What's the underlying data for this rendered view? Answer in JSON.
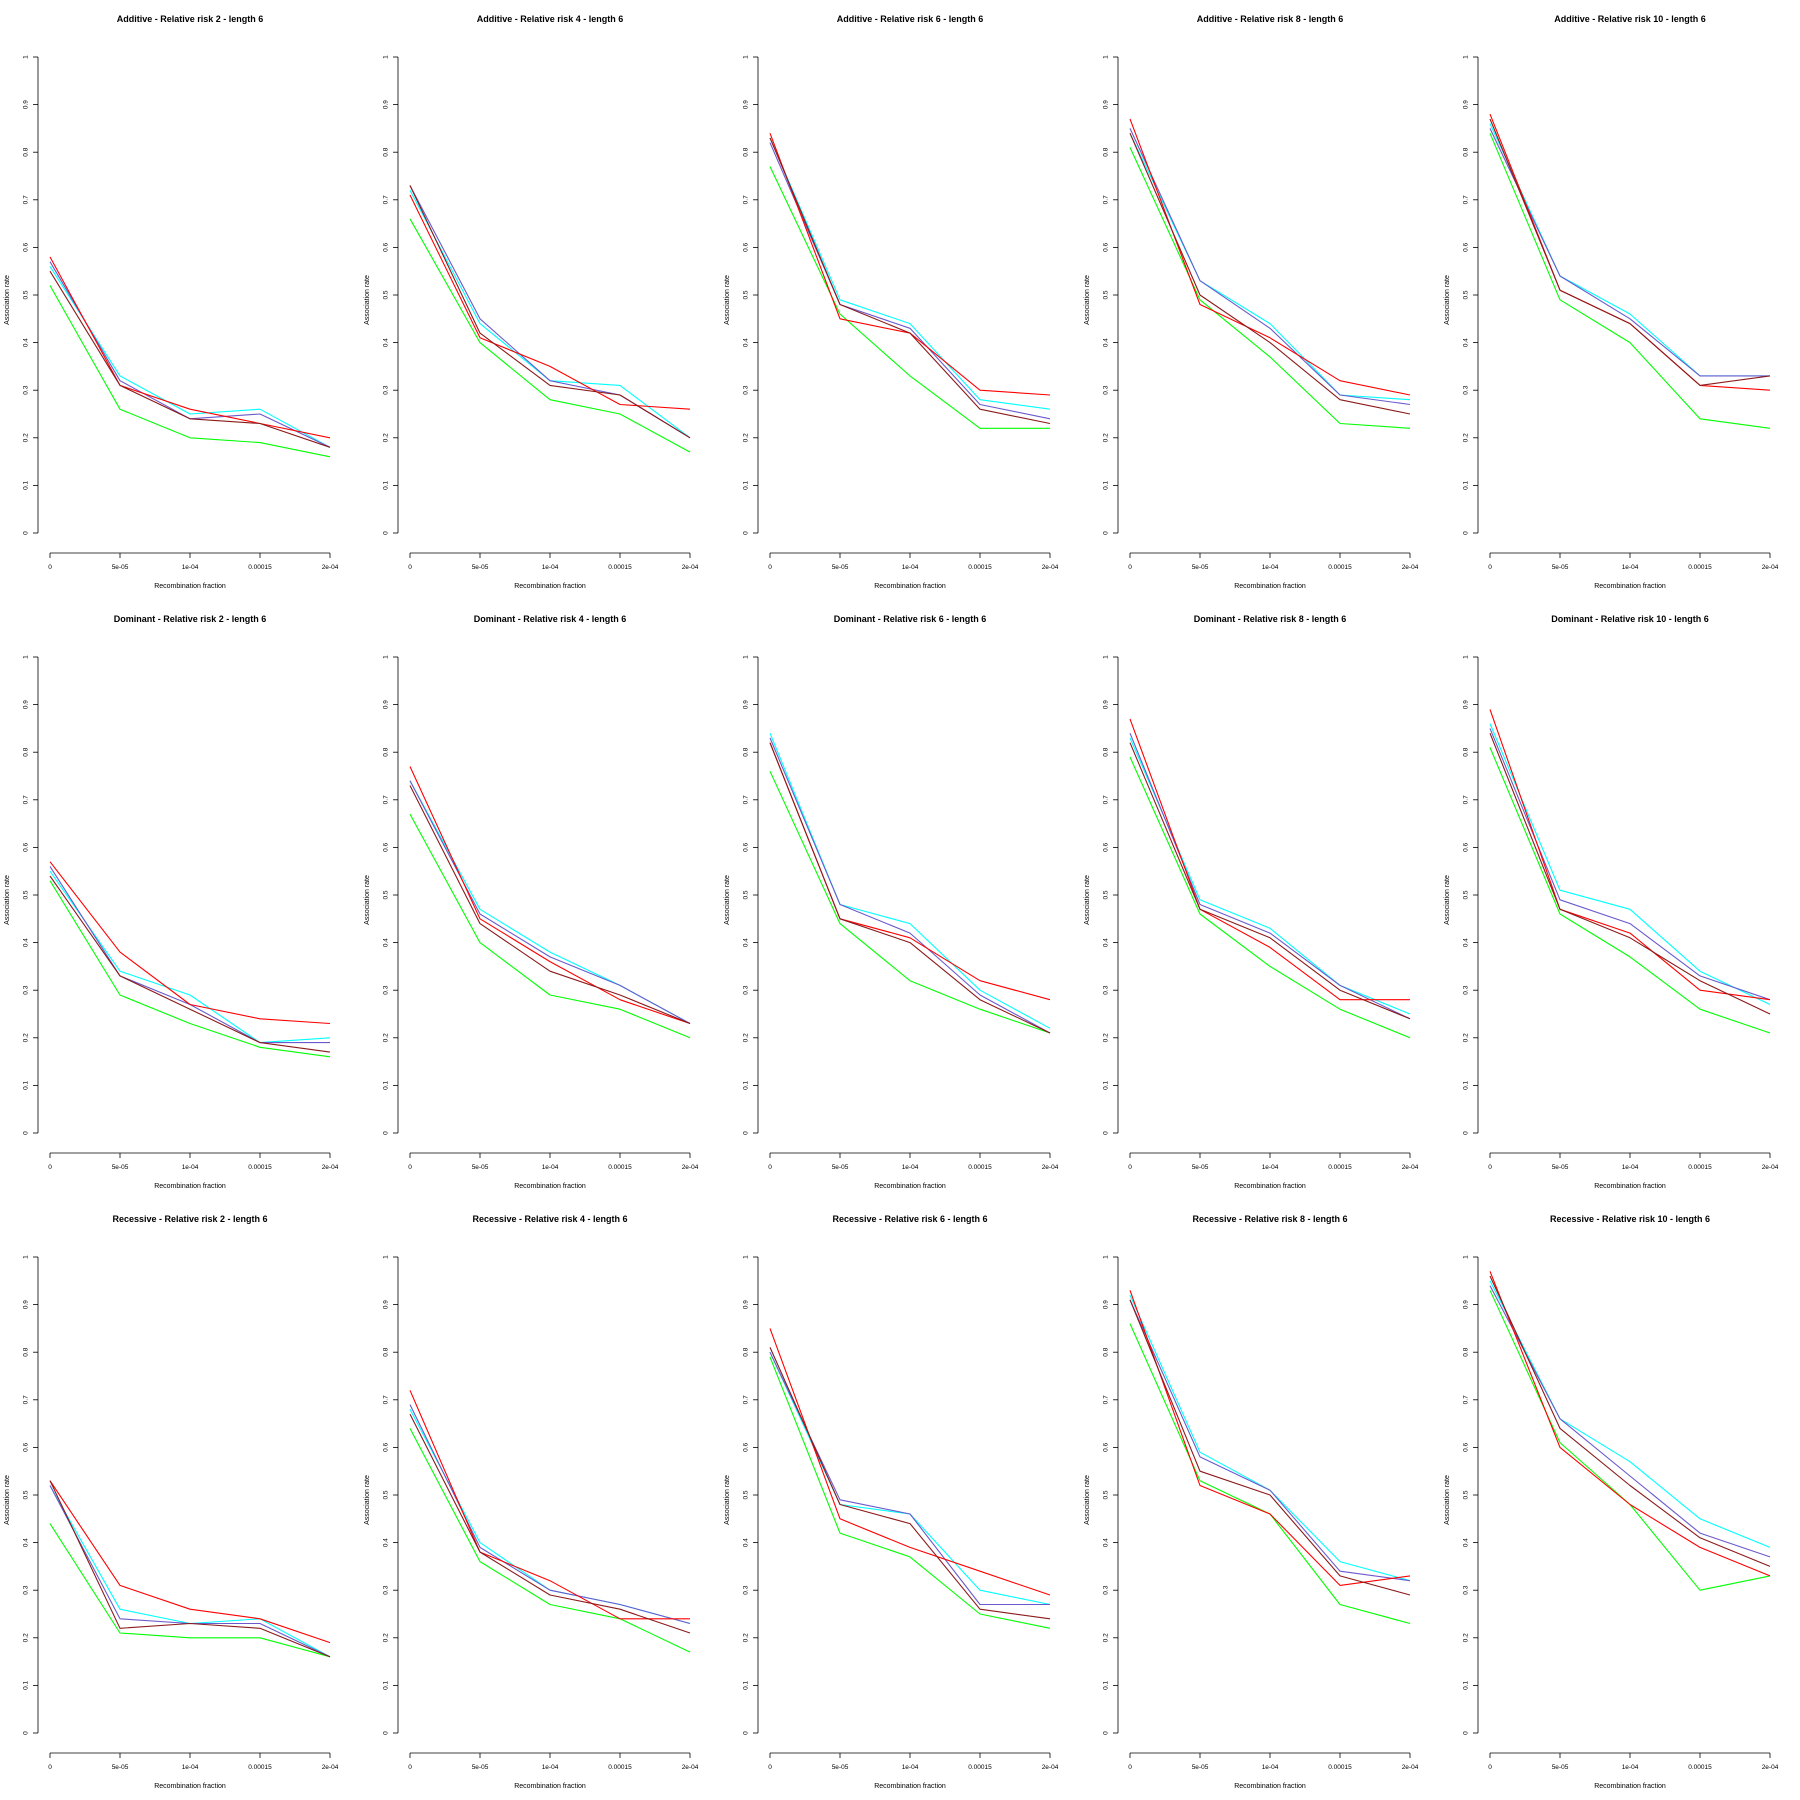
{
  "axes": {
    "xlabel": "Recombination fraction",
    "ylabel": "Association rate",
    "x_ticks": [
      "0",
      "5e-05",
      "1e-04",
      "0.00015",
      "2e-04"
    ],
    "y_ticks": [
      "0",
      "0.1",
      "0.2",
      "0.3",
      "0.4",
      "0.5",
      "0.6",
      "0.7",
      "0.8",
      "0.9",
      "1"
    ],
    "ylim": [
      0,
      1
    ]
  },
  "colors": {
    "cyan": "#00ffff",
    "green": "#00ff00",
    "blue": "#6a5acd",
    "red": "#ff0000",
    "brown": "#8b1a1a",
    "axis": "#000000"
  },
  "chart_data": [
    {
      "type": "line",
      "title": "Additive  - Relative risk 2 - length 6",
      "x": [
        "0",
        "5e-05",
        "1e-04",
        "0.00015",
        "2e-04"
      ],
      "xlabel": "Recombination fraction",
      "ylabel": "Association rate",
      "ylim": [
        0,
        1
      ],
      "series": [
        {
          "color": "cyan",
          "values": [
            0.56,
            0.33,
            0.25,
            0.26,
            0.18
          ]
        },
        {
          "color": "green",
          "values": [
            0.52,
            0.26,
            0.2,
            0.19,
            0.16
          ]
        },
        {
          "color": "blue",
          "values": [
            0.57,
            0.32,
            0.24,
            0.25,
            0.18
          ]
        },
        {
          "color": "red",
          "values": [
            0.58,
            0.31,
            0.26,
            0.23,
            0.2
          ]
        },
        {
          "color": "brown",
          "values": [
            0.55,
            0.31,
            0.24,
            0.23,
            0.18
          ]
        }
      ]
    },
    {
      "type": "line",
      "title": "Additive  - Relative risk 4 - length 6",
      "x": [
        "0",
        "5e-05",
        "1e-04",
        "0.00015",
        "2e-04"
      ],
      "xlabel": "Recombination fraction",
      "ylabel": "Association rate",
      "ylim": [
        0,
        1
      ],
      "series": [
        {
          "color": "cyan",
          "values": [
            0.72,
            0.44,
            0.32,
            0.31,
            0.2
          ]
        },
        {
          "color": "green",
          "values": [
            0.66,
            0.4,
            0.28,
            0.25,
            0.17
          ]
        },
        {
          "color": "blue",
          "values": [
            0.73,
            0.45,
            0.32,
            0.29,
            0.2
          ]
        },
        {
          "color": "red",
          "values": [
            0.71,
            0.41,
            0.35,
            0.27,
            0.26
          ]
        },
        {
          "color": "brown",
          "values": [
            0.73,
            0.42,
            0.31,
            0.29,
            0.2
          ]
        }
      ]
    },
    {
      "type": "line",
      "title": "Additive  - Relative risk 6 - length 6",
      "x": [
        "0",
        "5e-05",
        "1e-04",
        "0.00015",
        "2e-04"
      ],
      "xlabel": "Recombination fraction",
      "ylabel": "Association rate",
      "ylim": [
        0,
        1
      ],
      "series": [
        {
          "color": "cyan",
          "values": [
            0.83,
            0.49,
            0.44,
            0.28,
            0.26
          ]
        },
        {
          "color": "green",
          "values": [
            0.77,
            0.46,
            0.33,
            0.22,
            0.22
          ]
        },
        {
          "color": "blue",
          "values": [
            0.82,
            0.48,
            0.43,
            0.27,
            0.24
          ]
        },
        {
          "color": "red",
          "values": [
            0.84,
            0.45,
            0.42,
            0.3,
            0.29
          ]
        },
        {
          "color": "brown",
          "values": [
            0.83,
            0.48,
            0.42,
            0.26,
            0.23
          ]
        }
      ]
    },
    {
      "type": "line",
      "title": "Additive  - Relative risk 8 - length 6",
      "x": [
        "0",
        "5e-05",
        "1e-04",
        "0.00015",
        "2e-04"
      ],
      "xlabel": "Recombination fraction",
      "ylabel": "Association rate",
      "ylim": [
        0,
        1
      ],
      "series": [
        {
          "color": "cyan",
          "values": [
            0.84,
            0.53,
            0.44,
            0.29,
            0.28
          ]
        },
        {
          "color": "green",
          "values": [
            0.81,
            0.49,
            0.37,
            0.23,
            0.22
          ]
        },
        {
          "color": "blue",
          "values": [
            0.85,
            0.53,
            0.43,
            0.29,
            0.27
          ]
        },
        {
          "color": "red",
          "values": [
            0.87,
            0.48,
            0.41,
            0.32,
            0.29
          ]
        },
        {
          "color": "brown",
          "values": [
            0.84,
            0.5,
            0.4,
            0.28,
            0.25
          ]
        }
      ]
    },
    {
      "type": "line",
      "title": "Additive  - Relative risk 10 - length 6",
      "x": [
        "0",
        "5e-05",
        "1e-04",
        "0.00015",
        "2e-04"
      ],
      "xlabel": "Recombination fraction",
      "ylabel": "Association rate",
      "ylim": [
        0,
        1
      ],
      "series": [
        {
          "color": "cyan",
          "values": [
            0.86,
            0.54,
            0.46,
            0.33,
            0.33
          ]
        },
        {
          "color": "green",
          "values": [
            0.84,
            0.49,
            0.4,
            0.24,
            0.22
          ]
        },
        {
          "color": "blue",
          "values": [
            0.85,
            0.54,
            0.45,
            0.33,
            0.33
          ]
        },
        {
          "color": "red",
          "values": [
            0.88,
            0.51,
            0.44,
            0.31,
            0.3
          ]
        },
        {
          "color": "brown",
          "values": [
            0.87,
            0.51,
            0.44,
            0.31,
            0.33
          ]
        }
      ]
    },
    {
      "type": "line",
      "title": "Dominant  - Relative risk 2 - length 6",
      "x": [
        "0",
        "5e-05",
        "1e-04",
        "0.00015",
        "2e-04"
      ],
      "xlabel": "Recombination fraction",
      "ylabel": "Association rate",
      "ylim": [
        0,
        1
      ],
      "series": [
        {
          "color": "cyan",
          "values": [
            0.55,
            0.34,
            0.29,
            0.19,
            0.2
          ]
        },
        {
          "color": "green",
          "values": [
            0.53,
            0.29,
            0.23,
            0.18,
            0.16
          ]
        },
        {
          "color": "blue",
          "values": [
            0.56,
            0.33,
            0.27,
            0.19,
            0.19
          ]
        },
        {
          "color": "red",
          "values": [
            0.57,
            0.38,
            0.27,
            0.24,
            0.23
          ]
        },
        {
          "color": "brown",
          "values": [
            0.54,
            0.33,
            0.26,
            0.19,
            0.17
          ]
        }
      ]
    },
    {
      "type": "line",
      "title": "Dominant  - Relative risk 4 - length 6",
      "x": [
        "0",
        "5e-05",
        "1e-04",
        "0.00015",
        "2e-04"
      ],
      "xlabel": "Recombination fraction",
      "ylabel": "Association rate",
      "ylim": [
        0,
        1
      ],
      "series": [
        {
          "color": "cyan",
          "values": [
            0.74,
            0.47,
            0.38,
            0.31,
            0.23
          ]
        },
        {
          "color": "green",
          "values": [
            0.67,
            0.4,
            0.29,
            0.26,
            0.2
          ]
        },
        {
          "color": "blue",
          "values": [
            0.74,
            0.46,
            0.37,
            0.31,
            0.23
          ]
        },
        {
          "color": "red",
          "values": [
            0.77,
            0.45,
            0.36,
            0.28,
            0.23
          ]
        },
        {
          "color": "brown",
          "values": [
            0.73,
            0.44,
            0.34,
            0.29,
            0.23
          ]
        }
      ]
    },
    {
      "type": "line",
      "title": "Dominant  - Relative risk 6 - length 6",
      "x": [
        "0",
        "5e-05",
        "1e-04",
        "0.00015",
        "2e-04"
      ],
      "xlabel": "Recombination fraction",
      "ylabel": "Association rate",
      "ylim": [
        0,
        1
      ],
      "series": [
        {
          "color": "cyan",
          "values": [
            0.84,
            0.48,
            0.44,
            0.3,
            0.22
          ]
        },
        {
          "color": "green",
          "values": [
            0.76,
            0.44,
            0.32,
            0.26,
            0.21
          ]
        },
        {
          "color": "blue",
          "values": [
            0.83,
            0.48,
            0.42,
            0.29,
            0.21
          ]
        },
        {
          "color": "red",
          "values": [
            0.82,
            0.45,
            0.41,
            0.32,
            0.28
          ]
        },
        {
          "color": "brown",
          "values": [
            0.82,
            0.45,
            0.4,
            0.28,
            0.21
          ]
        }
      ]
    },
    {
      "type": "line",
      "title": "Dominant  - Relative risk 8 - length 6",
      "x": [
        "0",
        "5e-05",
        "1e-04",
        "0.00015",
        "2e-04"
      ],
      "xlabel": "Recombination fraction",
      "ylabel": "Association rate",
      "ylim": [
        0,
        1
      ],
      "series": [
        {
          "color": "cyan",
          "values": [
            0.83,
            0.49,
            0.43,
            0.31,
            0.25
          ]
        },
        {
          "color": "green",
          "values": [
            0.79,
            0.46,
            0.35,
            0.26,
            0.2
          ]
        },
        {
          "color": "blue",
          "values": [
            0.84,
            0.48,
            0.42,
            0.31,
            0.24
          ]
        },
        {
          "color": "red",
          "values": [
            0.87,
            0.47,
            0.39,
            0.28,
            0.28
          ]
        },
        {
          "color": "brown",
          "values": [
            0.82,
            0.47,
            0.41,
            0.3,
            0.24
          ]
        }
      ]
    },
    {
      "type": "line",
      "title": "Dominant  - Relative risk 10 - length 6",
      "x": [
        "0",
        "5e-05",
        "1e-04",
        "0.00015",
        "2e-04"
      ],
      "xlabel": "Recombination fraction",
      "ylabel": "Association rate",
      "ylim": [
        0,
        1
      ],
      "series": [
        {
          "color": "cyan",
          "values": [
            0.86,
            0.51,
            0.47,
            0.34,
            0.27
          ]
        },
        {
          "color": "green",
          "values": [
            0.81,
            0.46,
            0.37,
            0.26,
            0.21
          ]
        },
        {
          "color": "blue",
          "values": [
            0.85,
            0.49,
            0.44,
            0.33,
            0.28
          ]
        },
        {
          "color": "red",
          "values": [
            0.89,
            0.47,
            0.42,
            0.3,
            0.28
          ]
        },
        {
          "color": "brown",
          "values": [
            0.84,
            0.47,
            0.41,
            0.32,
            0.25
          ]
        }
      ]
    },
    {
      "type": "line",
      "title": "Recessive  - Relative risk 2 - length 6",
      "x": [
        "0",
        "5e-05",
        "1e-04",
        "0.00015",
        "2e-04"
      ],
      "xlabel": "Recombination fraction",
      "ylabel": "Association rate",
      "ylim": [
        0,
        1
      ],
      "series": [
        {
          "color": "cyan",
          "values": [
            0.52,
            0.26,
            0.23,
            0.24,
            0.16
          ]
        },
        {
          "color": "green",
          "values": [
            0.44,
            0.21,
            0.2,
            0.2,
            0.16
          ]
        },
        {
          "color": "blue",
          "values": [
            0.52,
            0.24,
            0.23,
            0.23,
            0.16
          ]
        },
        {
          "color": "red",
          "values": [
            0.53,
            0.31,
            0.26,
            0.24,
            0.19
          ]
        },
        {
          "color": "brown",
          "values": [
            0.53,
            0.22,
            0.23,
            0.22,
            0.16
          ]
        }
      ]
    },
    {
      "type": "line",
      "title": "Recessive  - Relative risk 4 - length 6",
      "x": [
        "0",
        "5e-05",
        "1e-04",
        "0.00015",
        "2e-04"
      ],
      "xlabel": "Recombination fraction",
      "ylabel": "Association rate",
      "ylim": [
        0,
        1
      ],
      "series": [
        {
          "color": "cyan",
          "values": [
            0.68,
            0.4,
            0.3,
            0.27,
            0.23
          ]
        },
        {
          "color": "green",
          "values": [
            0.64,
            0.36,
            0.27,
            0.24,
            0.17
          ]
        },
        {
          "color": "blue",
          "values": [
            0.69,
            0.39,
            0.3,
            0.27,
            0.23
          ]
        },
        {
          "color": "red",
          "values": [
            0.72,
            0.38,
            0.32,
            0.24,
            0.24
          ]
        },
        {
          "color": "brown",
          "values": [
            0.67,
            0.38,
            0.29,
            0.26,
            0.21
          ]
        }
      ]
    },
    {
      "type": "line",
      "title": "Recessive  - Relative risk 6 - length 6",
      "x": [
        "0",
        "5e-05",
        "1e-04",
        "0.00015",
        "2e-04"
      ],
      "xlabel": "Recombination fraction",
      "ylabel": "Association rate",
      "ylim": [
        0,
        1
      ],
      "series": [
        {
          "color": "cyan",
          "values": [
            0.8,
            0.48,
            0.46,
            0.3,
            0.27
          ]
        },
        {
          "color": "green",
          "values": [
            0.79,
            0.42,
            0.37,
            0.25,
            0.22
          ]
        },
        {
          "color": "blue",
          "values": [
            0.8,
            0.49,
            0.46,
            0.27,
            0.27
          ]
        },
        {
          "color": "red",
          "values": [
            0.85,
            0.45,
            0.39,
            0.34,
            0.29
          ]
        },
        {
          "color": "brown",
          "values": [
            0.81,
            0.48,
            0.44,
            0.26,
            0.24
          ]
        }
      ]
    },
    {
      "type": "line",
      "title": "Recessive  - Relative risk 8 - length 6",
      "x": [
        "0",
        "5e-05",
        "1e-04",
        "0.00015",
        "2e-04"
      ],
      "xlabel": "Recombination fraction",
      "ylabel": "Association rate",
      "ylim": [
        0,
        1
      ],
      "series": [
        {
          "color": "cyan",
          "values": [
            0.92,
            0.59,
            0.51,
            0.36,
            0.32
          ]
        },
        {
          "color": "green",
          "values": [
            0.86,
            0.53,
            0.46,
            0.27,
            0.23
          ]
        },
        {
          "color": "blue",
          "values": [
            0.91,
            0.58,
            0.51,
            0.34,
            0.32
          ]
        },
        {
          "color": "red",
          "values": [
            0.93,
            0.52,
            0.46,
            0.31,
            0.33
          ]
        },
        {
          "color": "brown",
          "values": [
            0.91,
            0.55,
            0.5,
            0.33,
            0.29
          ]
        }
      ]
    },
    {
      "type": "line",
      "title": "Recessive  - Relative risk 10 - length 6",
      "x": [
        "0",
        "5e-05",
        "1e-04",
        "0.00015",
        "2e-04"
      ],
      "xlabel": "Recombination fraction",
      "ylabel": "Association rate",
      "ylim": [
        0,
        1
      ],
      "series": [
        {
          "color": "cyan",
          "values": [
            0.95,
            0.66,
            0.57,
            0.45,
            0.39
          ]
        },
        {
          "color": "green",
          "values": [
            0.93,
            0.61,
            0.48,
            0.3,
            0.33
          ]
        },
        {
          "color": "blue",
          "values": [
            0.94,
            0.66,
            0.54,
            0.42,
            0.37
          ]
        },
        {
          "color": "red",
          "values": [
            0.97,
            0.6,
            0.48,
            0.39,
            0.33
          ]
        },
        {
          "color": "brown",
          "values": [
            0.96,
            0.64,
            0.52,
            0.41,
            0.35
          ]
        }
      ]
    }
  ]
}
